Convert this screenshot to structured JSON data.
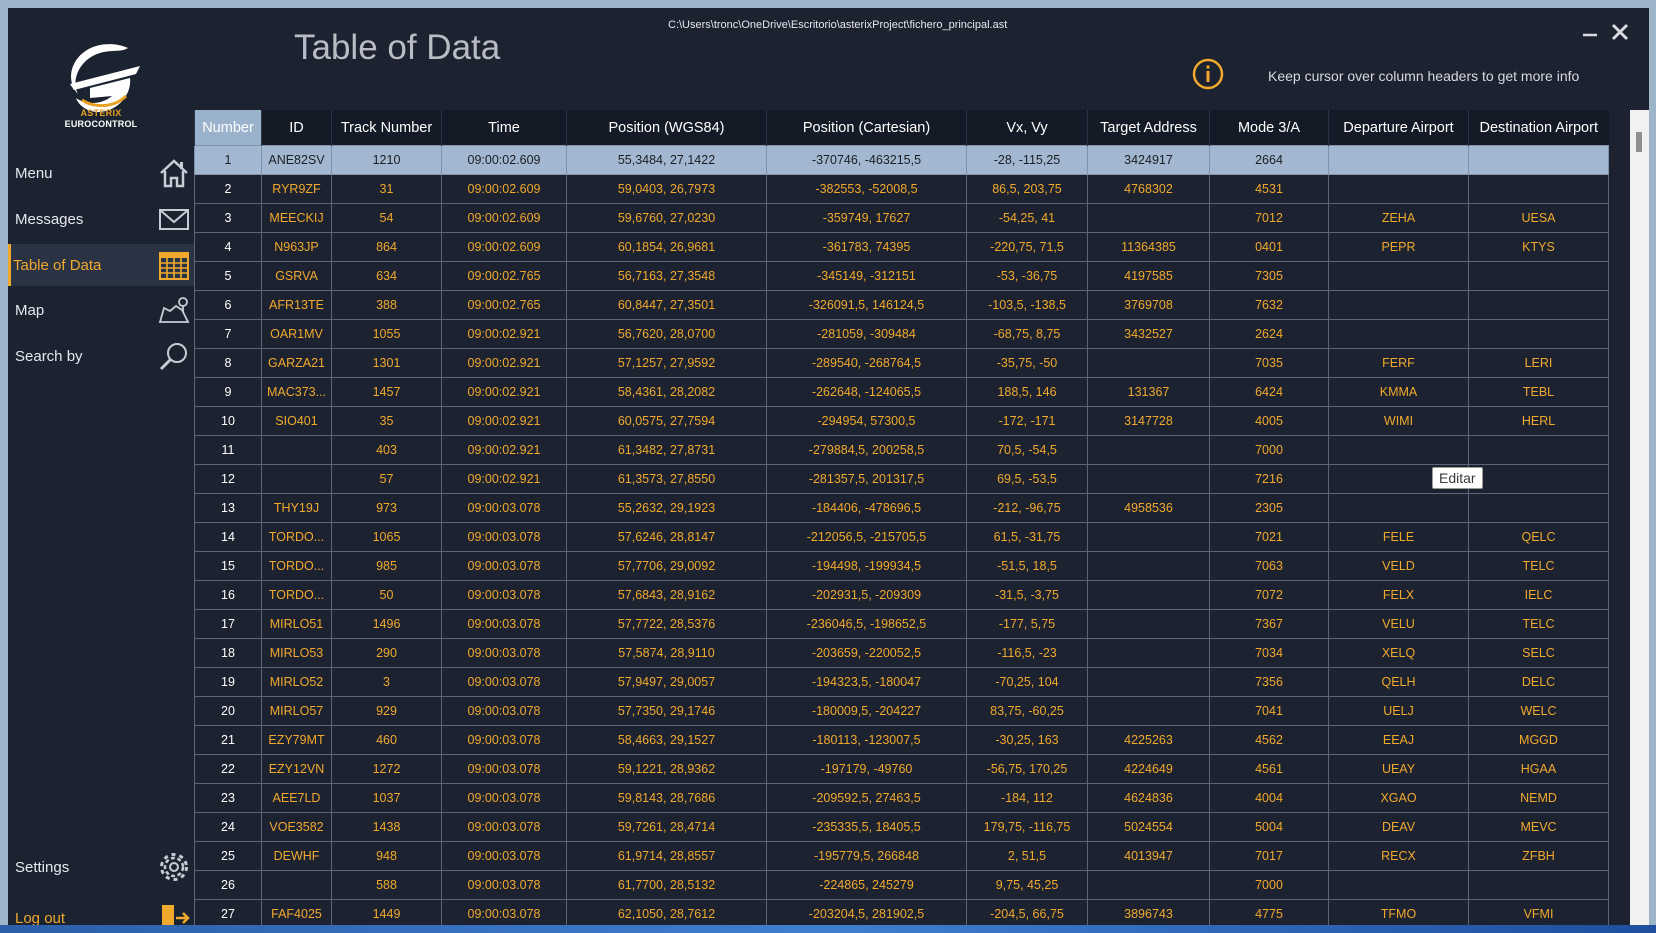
{
  "window": {
    "file_path": "C:\\Users\\tronc\\OneDrive\\Escritorio\\asterixProject\\fichero_principal.ast",
    "title": "Table of Data",
    "hint": "Keep cursor over column headers to get more info"
  },
  "logo": {
    "line1": "ASTERIX",
    "line2": "EUROCONTROL"
  },
  "sidebar": {
    "items": [
      {
        "label": "Menu",
        "icon": "home-icon"
      },
      {
        "label": "Messages",
        "icon": "envelope-icon"
      },
      {
        "label": "Table of Data",
        "icon": "calendar-icon",
        "active": true
      },
      {
        "label": "Map",
        "icon": "map-icon"
      },
      {
        "label": "Search by",
        "icon": "magnifier-icon"
      },
      {
        "label": "Settings",
        "icon": "gear-icon"
      },
      {
        "label": "Log out",
        "icon": "logout-icon"
      }
    ]
  },
  "colors": {
    "accent": "#f0a92d",
    "background": "#1d2230",
    "selected_row": "#a3b8d0"
  },
  "table": {
    "columns": [
      "Number",
      "ID",
      "Track Number",
      "Time",
      "Position (WGS84)",
      "Position (Cartesian)",
      "Vx, Vy",
      "Target Address",
      "Mode 3/A",
      "Departure Airport",
      "Destination Airport"
    ],
    "rows": [
      [
        "1",
        "ANE82SV",
        "1210",
        "09:00:02.609",
        "55,3484, 27,1422",
        "-370746, -463215,5",
        "-28, -115,25",
        "3424917",
        "2664",
        "",
        ""
      ],
      [
        "2",
        "RYR9ZF",
        "31",
        "09:00:02.609",
        "59,0403, 26,7973",
        "-382553, -52008,5",
        "86,5, 203,75",
        "4768302",
        "4531",
        "",
        ""
      ],
      [
        "3",
        "MEECKIJ",
        "54",
        "09:00:02.609",
        "59,6760, 27,0230",
        "-359749, 17627",
        "-54,25, 41",
        "",
        "7012",
        "ZEHA",
        "UESA"
      ],
      [
        "4",
        "N963JP",
        "864",
        "09:00:02.609",
        "60,1854, 26,9681",
        "-361783, 74395",
        "-220,75, 71,5",
        "11364385",
        "0401",
        "PEPR",
        "KTYS"
      ],
      [
        "5",
        "GSRVA",
        "634",
        "09:00:02.765",
        "56,7163, 27,3548",
        "-345149, -312151",
        "-53, -36,75",
        "4197585",
        "7305",
        "",
        ""
      ],
      [
        "6",
        "AFR13TE",
        "388",
        "09:00:02.765",
        "60,8447, 27,3501",
        "-326091,5, 146124,5",
        "-103,5, -138,5",
        "3769708",
        "7632",
        "",
        ""
      ],
      [
        "7",
        "OAR1MV",
        "1055",
        "09:00:02.921",
        "56,7620, 28,0700",
        "-281059, -309484",
        "-68,75, 8,75",
        "3432527",
        "2624",
        "",
        ""
      ],
      [
        "8",
        "GARZA21",
        "1301",
        "09:00:02.921",
        "57,1257, 27,9592",
        "-289540, -268764,5",
        "-35,75, -50",
        "",
        "7035",
        "FERF",
        "LERI"
      ],
      [
        "9",
        "MAC373...",
        "1457",
        "09:00:02.921",
        "58,4361, 28,2082",
        "-262648, -124065,5",
        "188,5, 146",
        "131367",
        "6424",
        "KMMA",
        "TEBL"
      ],
      [
        "10",
        "SIO401",
        "35",
        "09:00:02.921",
        "60,0575, 27,7594",
        "-294954, 57300,5",
        "-172, -171",
        "3147728",
        "4005",
        "WIMI",
        "HERL"
      ],
      [
        "11",
        "",
        "403",
        "09:00:02.921",
        "61,3482, 27,8731",
        "-279884,5, 200258,5",
        "70,5, -54,5",
        "",
        "7000",
        "",
        ""
      ],
      [
        "12",
        "",
        "57",
        "09:00:02.921",
        "61,3573, 27,8550",
        "-281357,5, 201317,5",
        "69,5, -53,5",
        "",
        "7216",
        "",
        ""
      ],
      [
        "13",
        "THY19J",
        "973",
        "09:00:03.078",
        "55,2632, 29,1923",
        "-184406, -478696,5",
        "-212, -96,75",
        "4958536",
        "2305",
        "",
        ""
      ],
      [
        "14",
        "TORDO...",
        "1065",
        "09:00:03.078",
        "57,6246, 28,8147",
        "-212056,5, -215705,5",
        "61,5, -31,75",
        "",
        "7021",
        "FELE",
        "QELC"
      ],
      [
        "15",
        "TORDO...",
        "985",
        "09:00:03.078",
        "57,7706, 29,0092",
        "-194498, -199934,5",
        "-51,5, 18,5",
        "",
        "7063",
        "VELD",
        "TELC"
      ],
      [
        "16",
        "TORDO...",
        "50",
        "09:00:03.078",
        "57,6843, 28,9162",
        "-202931,5, -209309",
        "-31,5, -3,75",
        "",
        "7072",
        "FELX",
        "IELC"
      ],
      [
        "17",
        "MIRLO51",
        "1496",
        "09:00:03.078",
        "57,7722, 28,5376",
        "-236046,5, -198652,5",
        "-177, 5,75",
        "",
        "7367",
        "VELU",
        "TELC"
      ],
      [
        "18",
        "MIRLO53",
        "290",
        "09:00:03.078",
        "57,5874, 28,9110",
        "-203659, -220052,5",
        "-116,5, -23",
        "",
        "7034",
        "XELQ",
        "SELC"
      ],
      [
        "19",
        "MIRLO52",
        "3",
        "09:00:03.078",
        "57,9497, 29,0057",
        "-194323,5, -180047",
        "-70,25, 104",
        "",
        "7356",
        "QELH",
        "DELC"
      ],
      [
        "20",
        "MIRLO57",
        "929",
        "09:00:03.078",
        "57,7350, 29,1746",
        "-180009,5, -204227",
        "83,75, -60,25",
        "",
        "7041",
        "UELJ",
        "WELC"
      ],
      [
        "21",
        "EZY79MT",
        "460",
        "09:00:03.078",
        "58,4663, 29,1527",
        "-180113, -123007,5",
        "-30,25, 163",
        "4225263",
        "4562",
        "EEAJ",
        "MGGD"
      ],
      [
        "22",
        "EZY12VN",
        "1272",
        "09:00:03.078",
        "59,1221, 28,9362",
        "-197179, -49760",
        "-56,75, 170,25",
        "4224649",
        "4561",
        "UEAY",
        "HGAA"
      ],
      [
        "23",
        "AEE7LD",
        "1037",
        "09:00:03.078",
        "59,8143, 28,7686",
        "-209592,5, 27463,5",
        "-184, 112",
        "4624836",
        "4004",
        "XGAO",
        "NEMD"
      ],
      [
        "24",
        "VOE3582",
        "1438",
        "09:00:03.078",
        "59,7261, 28,4714",
        "-235335,5, 18405,5",
        "179,75, -116,75",
        "5024554",
        "5004",
        "DEAV",
        "MEVC"
      ],
      [
        "25",
        "DEWHF",
        "948",
        "09:00:03.078",
        "61,9714, 28,8557",
        "-195779,5, 266848",
        "2, 51,5",
        "4013947",
        "7017",
        "RECX",
        "ZFBH"
      ],
      [
        "26",
        "",
        "588",
        "09:00:03.078",
        "61,7700, 28,5132",
        "-224865, 245279",
        "9,75, 45,25",
        "",
        "7000",
        "",
        ""
      ],
      [
        "27",
        "FAF4025",
        "1449",
        "09:00:03.078",
        "62,1050, 28,7612",
        "-203204,5, 281902,5",
        "-204,5, 66,75",
        "3896743",
        "4775",
        "TFMO",
        "VFMI"
      ]
    ],
    "selected_row": 1
  },
  "tooltip": {
    "text": "Editar"
  }
}
